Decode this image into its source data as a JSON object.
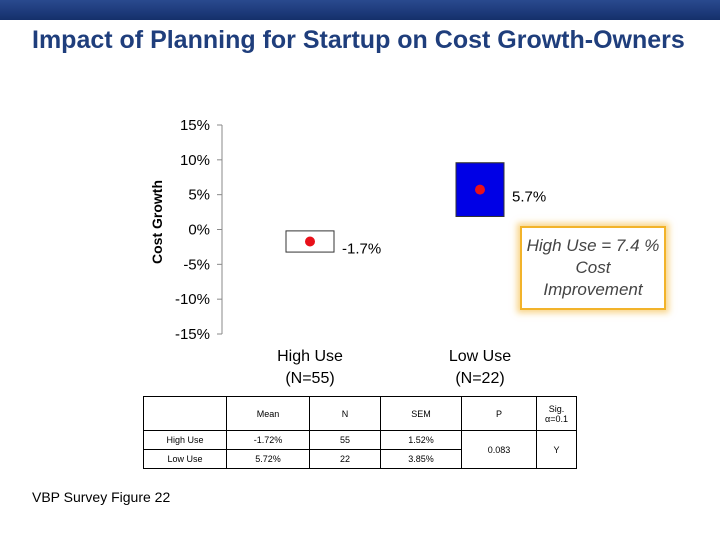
{
  "slide": {
    "title": "Impact of Planning for Startup on Cost Growth-Owners",
    "footer": "VBP Survey Figure 22"
  },
  "callout": {
    "text": "High Use = 7.4 % Cost Improvement",
    "border_color": "#f2b32a"
  },
  "colors": {
    "title": "#1f3e7c",
    "bar": "#0000e6",
    "point": "#e8101a"
  },
  "chart_data": {
    "type": "bar",
    "ylabel": "Cost Growth",
    "ylim": [
      -15,
      15
    ],
    "yticks": [
      15,
      10,
      5,
      0,
      -5,
      -10,
      -15
    ],
    "ytick_labels": [
      "15%",
      "10%",
      "5%",
      "0%",
      "-5%",
      "-10%",
      "-15%"
    ],
    "grid": false,
    "categories": [
      {
        "line1": "High Use",
        "line2": "(N=55)"
      },
      {
        "line1": "Low Use",
        "line2": "(N=22)"
      }
    ],
    "series": [
      {
        "mean": [
          -1.72,
          5.72
        ],
        "sem": [
          1.52,
          3.85
        ],
        "labels": [
          "-1.7%",
          "5.7%"
        ]
      }
    ]
  },
  "table": {
    "headers": [
      "",
      "Mean",
      "N",
      "SEM",
      "P",
      "Sig. α=0.1"
    ],
    "rows": [
      {
        "label": "High Use",
        "mean": "-1.72%",
        "n": "55",
        "sem": "1.52%"
      },
      {
        "label": "Low Use",
        "mean": "5.72%",
        "n": "22",
        "sem": "3.85%"
      }
    ],
    "p": "0.083",
    "sig": "Y"
  }
}
